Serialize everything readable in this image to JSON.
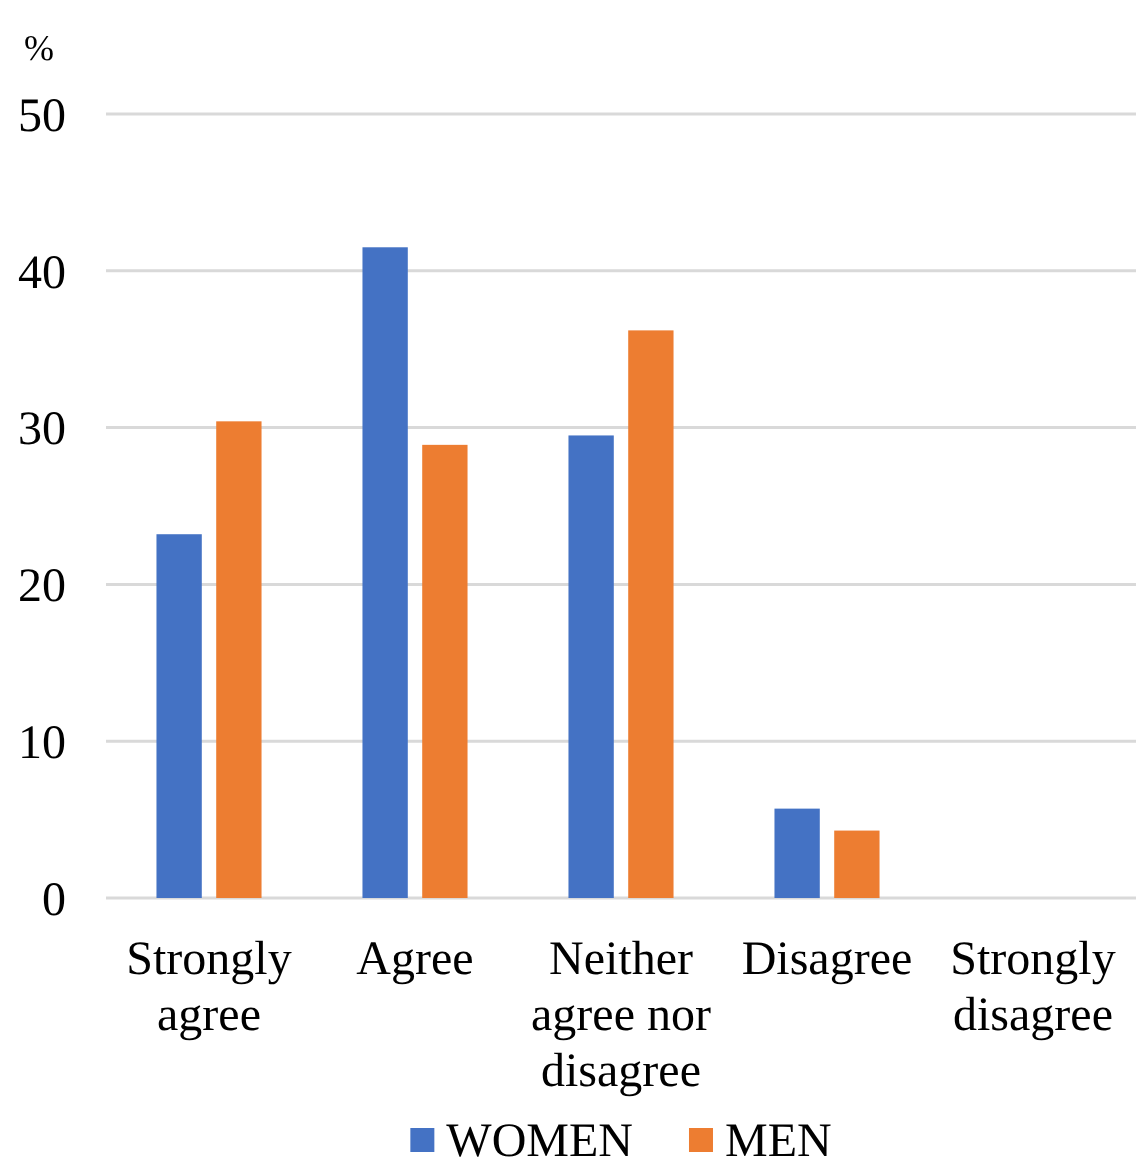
{
  "chart_data": {
    "type": "bar",
    "ylabel": "%",
    "categories": [
      "Strongly agree",
      "Agree",
      "Neither agree nor disagree",
      "Disagree",
      "Strongly disagree"
    ],
    "series": [
      {
        "name": "WOMEN",
        "color": "#4472c4",
        "values": [
          23.2,
          41.5,
          29.5,
          5.7,
          0
        ]
      },
      {
        "name": "MEN",
        "color": "#ed7d31",
        "values": [
          30.4,
          28.9,
          36.2,
          4.3,
          0
        ]
      }
    ],
    "ylim": [
      0,
      50
    ],
    "yticks": [
      0,
      10,
      20,
      30,
      40,
      50
    ],
    "grid": "y",
    "legend": "bottom"
  }
}
